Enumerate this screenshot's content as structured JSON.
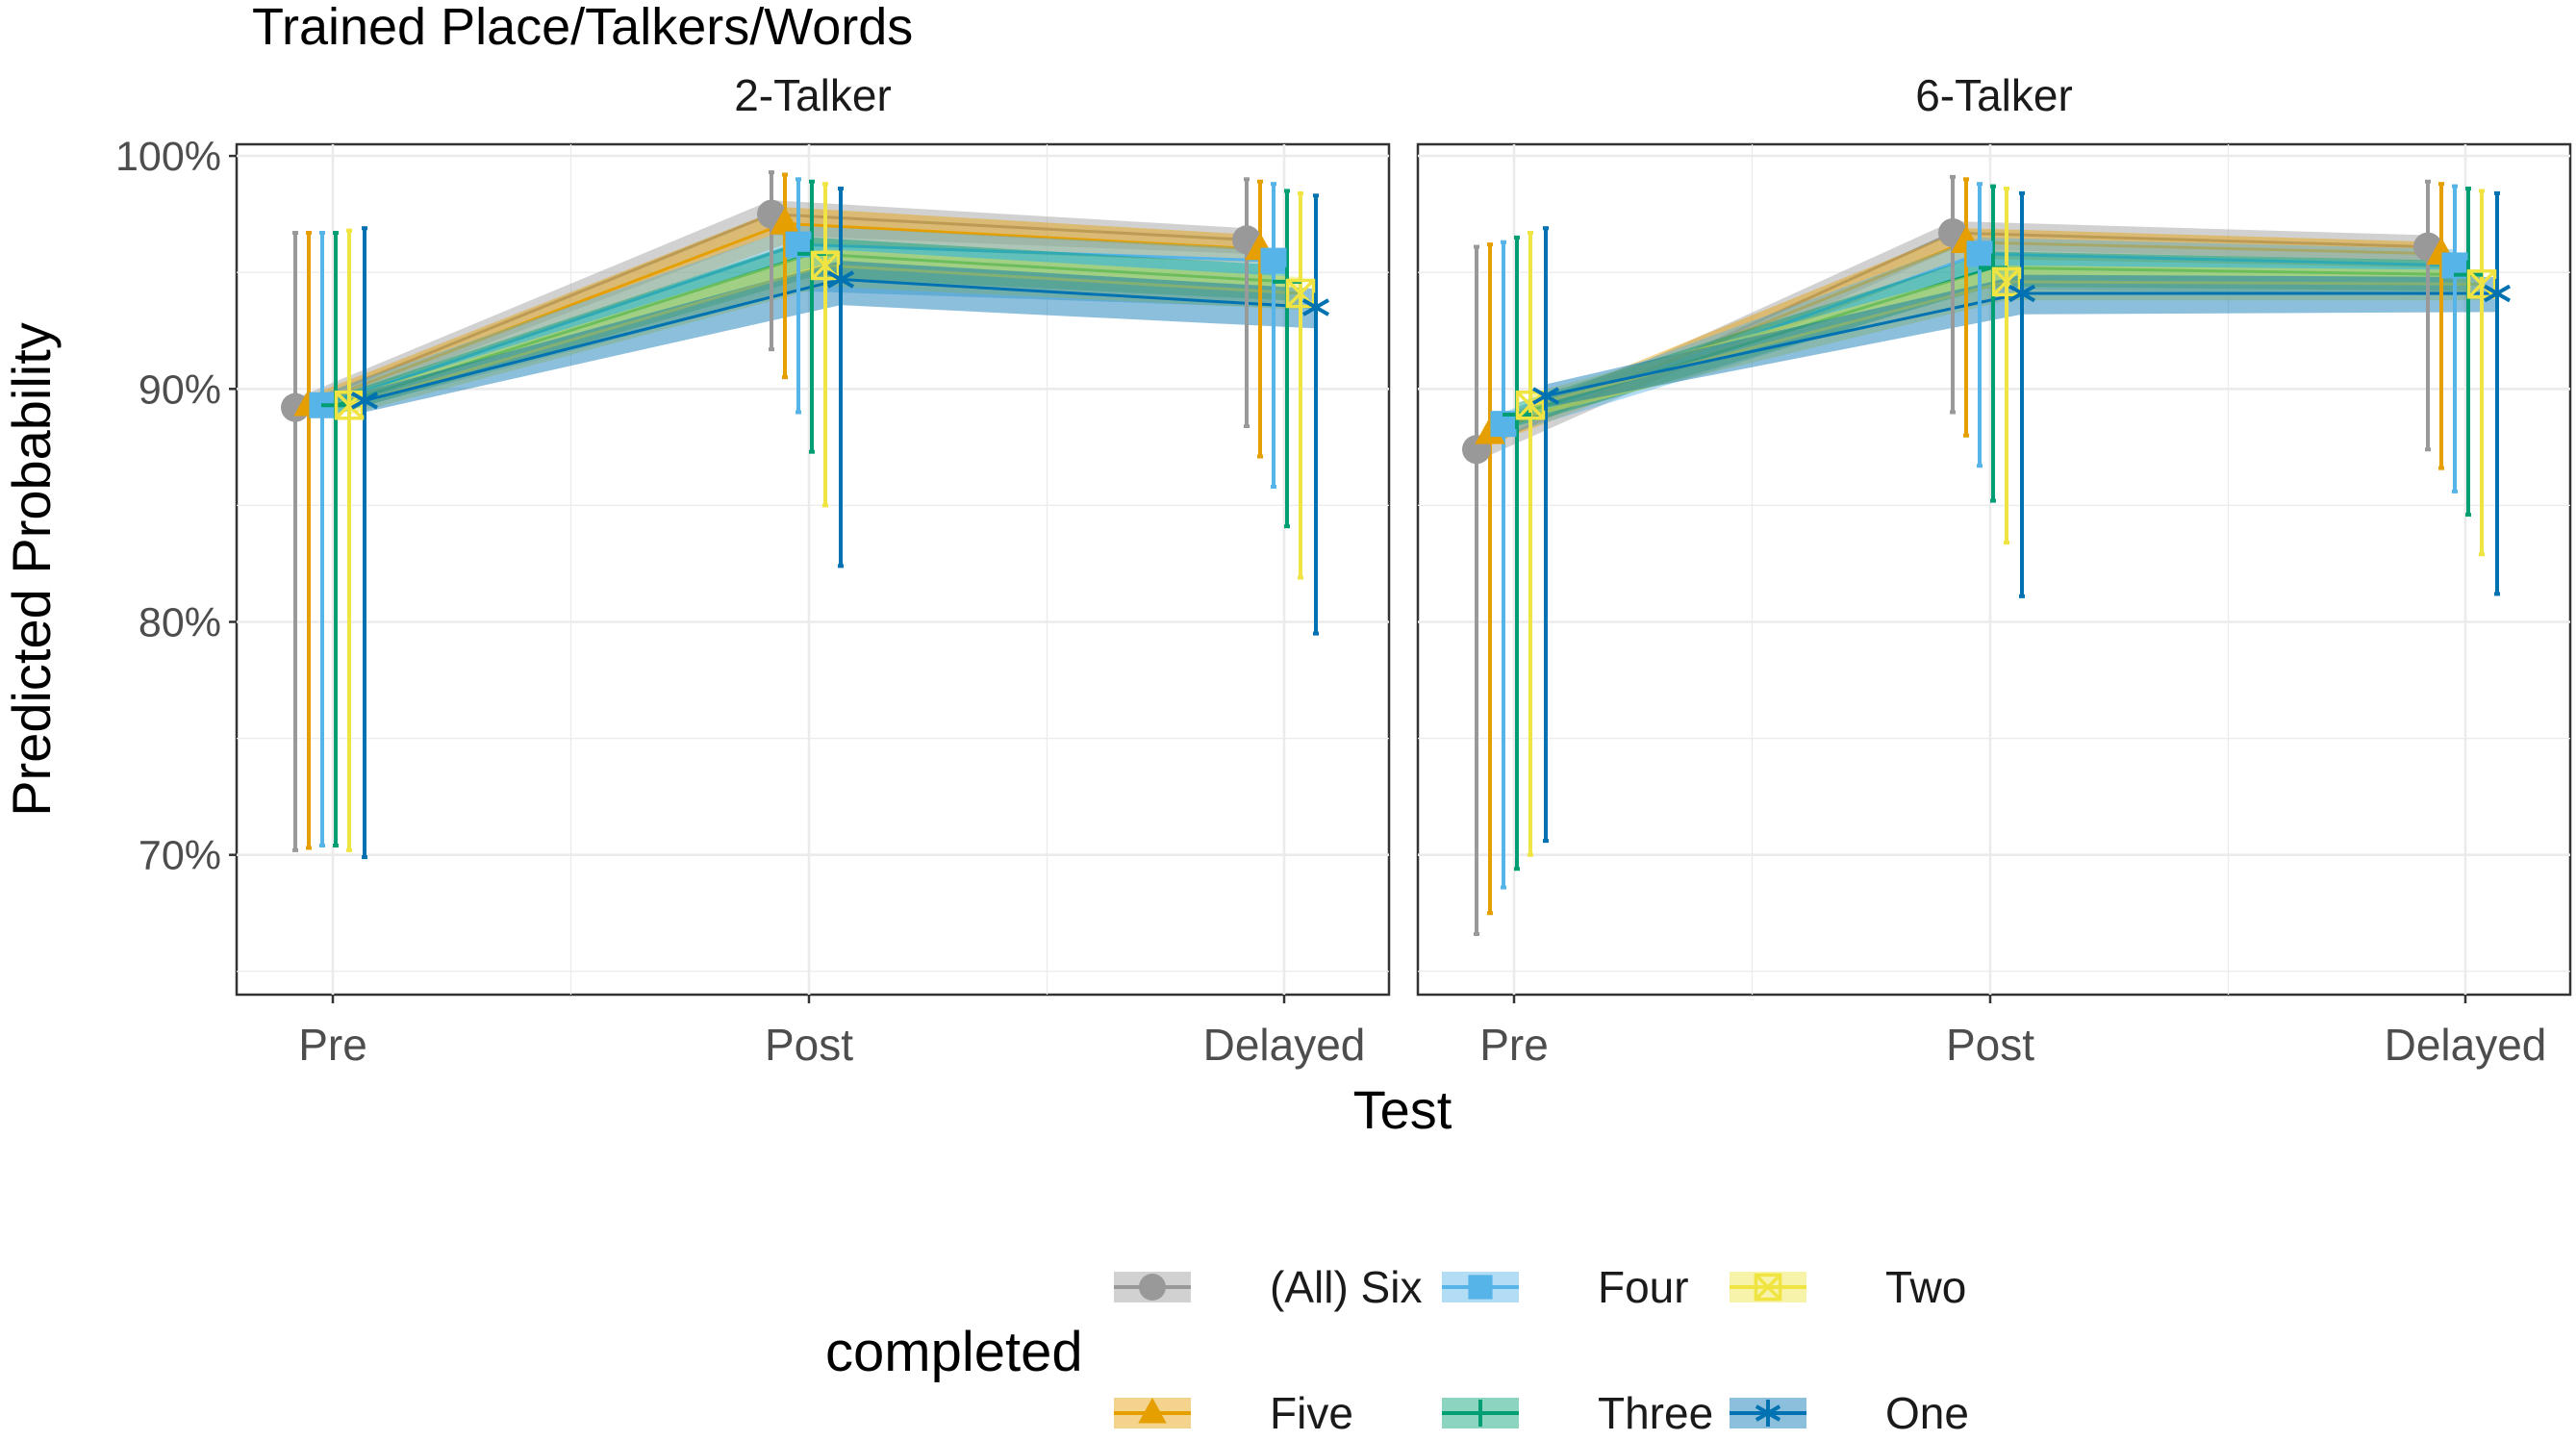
{
  "chart_data": {
    "type": "line",
    "title": "Trained Place/Talkers/Words",
    "xlabel": "Test",
    "ylabel": "Predicted Probability",
    "categories": [
      "Pre",
      "Post",
      "Delayed"
    ],
    "ylim": [
      0.64,
      1.005
    ],
    "yticks": [
      {
        "value": 0.7,
        "label": "70%"
      },
      {
        "value": 0.8,
        "label": "80%"
      },
      {
        "value": 0.9,
        "label": "90%"
      },
      {
        "value": 1.0,
        "label": "100%"
      }
    ],
    "grid": true,
    "legend": {
      "title": "completed",
      "position": "bottom"
    },
    "series": [
      {
        "name": "(All) Six",
        "color": "#999999",
        "marker": "circle"
      },
      {
        "name": "Five",
        "color": "#E69F00",
        "marker": "triangle"
      },
      {
        "name": "Four",
        "color": "#56B4E9",
        "marker": "square"
      },
      {
        "name": "Three",
        "color": "#009E73",
        "marker": "plus"
      },
      {
        "name": "Two",
        "color": "#F0E442",
        "marker": "square-x"
      },
      {
        "name": "One",
        "color": "#0072B2",
        "marker": "asterisk"
      }
    ],
    "facets": [
      {
        "label": "2-Talker",
        "data": [
          {
            "series": "(All) Six",
            "y": [
              0.892,
              0.975,
              0.964
            ],
            "lower": [
              0.702,
              0.917,
              0.884
            ],
            "upper": [
              0.967,
              0.993,
              0.99
            ],
            "band_lower": [
              0.888,
              0.966,
              0.958
            ],
            "band_upper": [
              0.896,
              0.981,
              0.969
            ]
          },
          {
            "series": "Five",
            "y": [
              0.893,
              0.971,
              0.96
            ],
            "lower": [
              0.703,
              0.905,
              0.871
            ],
            "upper": [
              0.967,
              0.992,
              0.989
            ],
            "band_lower": [
              0.889,
              0.962,
              0.954
            ],
            "band_upper": [
              0.897,
              0.978,
              0.966
            ]
          },
          {
            "series": "Four",
            "y": [
              0.893,
              0.962,
              0.955
            ],
            "lower": [
              0.704,
              0.89,
              0.858
            ],
            "upper": [
              0.967,
              0.99,
              0.988
            ],
            "band_lower": [
              0.888,
              0.942,
              0.935
            ],
            "band_upper": [
              0.898,
              0.97,
              0.96
            ]
          },
          {
            "series": "Three",
            "y": [
              0.893,
              0.958,
              0.946
            ],
            "lower": [
              0.704,
              0.873,
              0.841
            ],
            "upper": [
              0.967,
              0.989,
              0.985
            ],
            "band_lower": [
              0.889,
              0.948,
              0.938
            ],
            "band_upper": [
              0.897,
              0.965,
              0.953
            ]
          },
          {
            "series": "Two",
            "y": [
              0.893,
              0.953,
              0.941
            ],
            "lower": [
              0.702,
              0.85,
              0.819
            ],
            "upper": [
              0.968,
              0.988,
              0.984
            ],
            "band_lower": [
              0.889,
              0.944,
              0.934
            ],
            "band_upper": [
              0.897,
              0.96,
              0.948
            ]
          },
          {
            "series": "One",
            "y": [
              0.895,
              0.947,
              0.935
            ],
            "lower": [
              0.699,
              0.824,
              0.795
            ],
            "upper": [
              0.969,
              0.986,
              0.983
            ],
            "band_lower": [
              0.89,
              0.936,
              0.926
            ],
            "band_upper": [
              0.899,
              0.955,
              0.943
            ]
          }
        ]
      },
      {
        "label": "6-Talker",
        "data": [
          {
            "series": "(All) Six",
            "y": [
              0.874,
              0.967,
              0.961
            ],
            "lower": [
              0.666,
              0.89,
              0.874
            ],
            "upper": [
              0.961,
              0.991,
              0.989
            ],
            "band_lower": [
              0.869,
              0.96,
              0.955
            ],
            "band_upper": [
              0.879,
              0.972,
              0.966
            ]
          },
          {
            "series": "Five",
            "y": [
              0.881,
              0.963,
              0.958
            ],
            "lower": [
              0.675,
              0.88,
              0.866
            ],
            "upper": [
              0.962,
              0.99,
              0.988
            ],
            "band_lower": [
              0.876,
              0.956,
              0.952
            ],
            "band_upper": [
              0.886,
              0.969,
              0.963
            ]
          },
          {
            "series": "Four",
            "y": [
              0.885,
              0.958,
              0.953
            ],
            "lower": [
              0.686,
              0.867,
              0.856
            ],
            "upper": [
              0.963,
              0.988,
              0.987
            ],
            "band_lower": [
              0.88,
              0.943,
              0.94
            ],
            "band_upper": [
              0.89,
              0.965,
              0.96
            ]
          },
          {
            "series": "Three",
            "y": [
              0.889,
              0.952,
              0.949
            ],
            "lower": [
              0.694,
              0.852,
              0.846
            ],
            "upper": [
              0.965,
              0.987,
              0.986
            ],
            "band_lower": [
              0.884,
              0.944,
              0.942
            ],
            "band_upper": [
              0.894,
              0.959,
              0.955
            ]
          },
          {
            "series": "Two",
            "y": [
              0.893,
              0.946,
              0.945
            ],
            "lower": [
              0.7,
              0.834,
              0.829
            ],
            "upper": [
              0.967,
              0.986,
              0.985
            ],
            "band_lower": [
              0.888,
              0.938,
              0.938
            ],
            "band_upper": [
              0.898,
              0.953,
              0.951
            ]
          },
          {
            "series": "One",
            "y": [
              0.897,
              0.941,
              0.941
            ],
            "lower": [
              0.706,
              0.811,
              0.812
            ],
            "upper": [
              0.969,
              0.984,
              0.984
            ],
            "band_lower": [
              0.892,
              0.932,
              0.933
            ],
            "band_upper": [
              0.902,
              0.949,
              0.948
            ]
          }
        ]
      }
    ]
  }
}
